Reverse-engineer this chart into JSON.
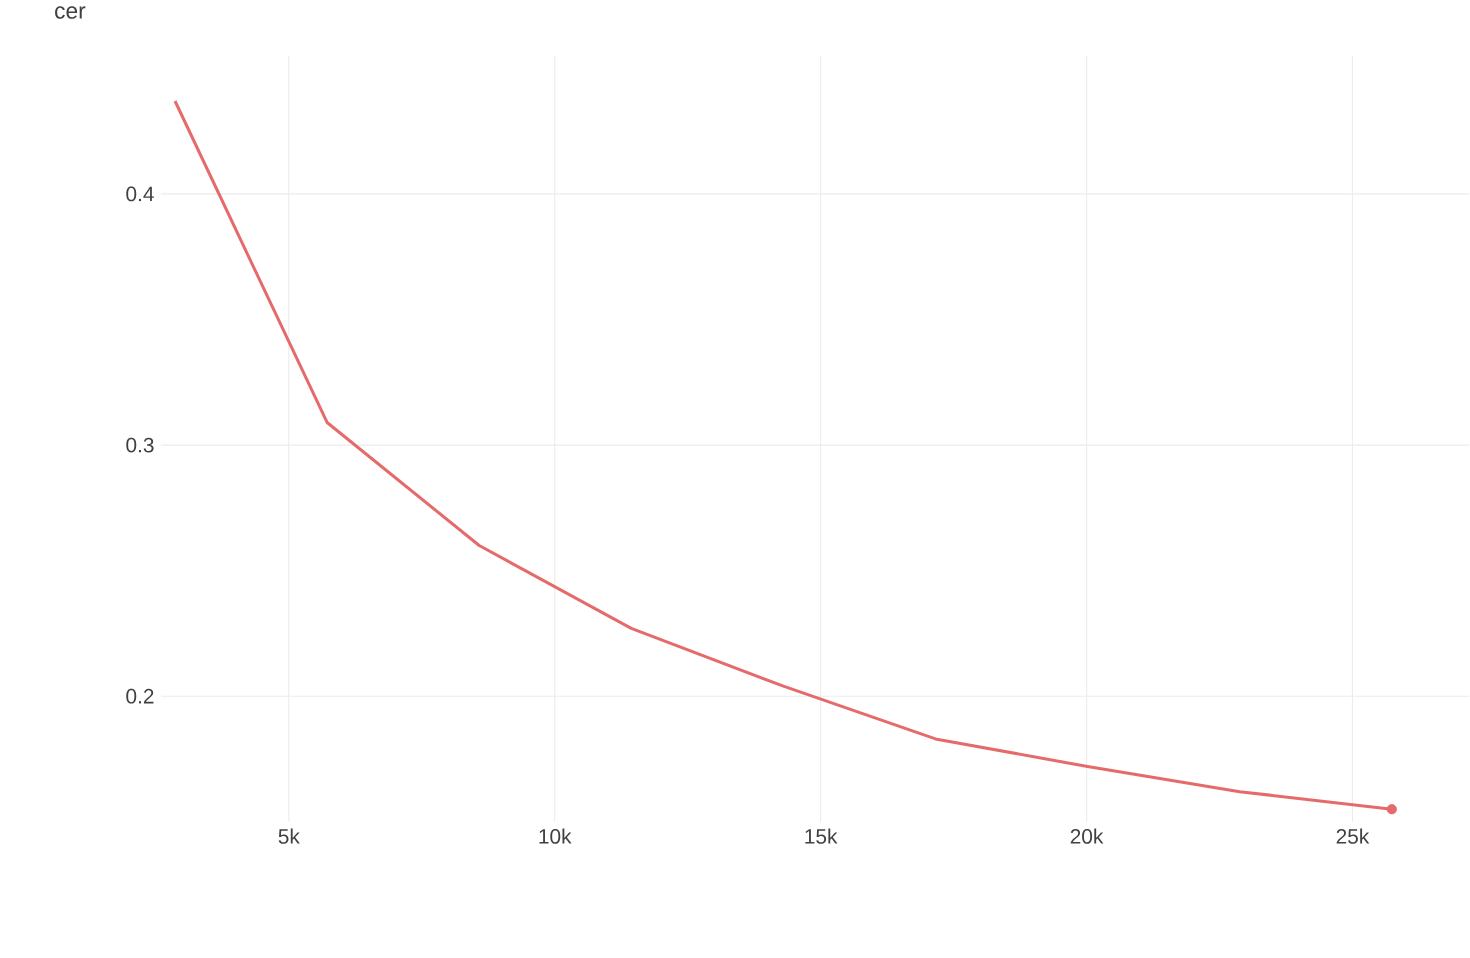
{
  "chart_data": {
    "type": "line",
    "title": "cer",
    "series": [
      {
        "color": "#e56b6b",
        "x": [
          2860,
          5720,
          8580,
          11440,
          14300,
          17160,
          20020,
          22880,
          25740
        ],
        "values": [
          0.437,
          0.309,
          0.26,
          0.227,
          0.204,
          0.183,
          0.172,
          0.162,
          0.155
        ]
      },
      {
        "type": "scatter",
        "color": "#e56b6b",
        "x": [
          25740
        ],
        "values": [
          0.155
        ]
      }
    ],
    "xlim": [
      2600,
      27200
    ],
    "ylim": [
      0.15,
      0.455
    ],
    "xticks": [
      {
        "value": 5000,
        "label": "5k"
      },
      {
        "value": 10000,
        "label": "10k"
      },
      {
        "value": 15000,
        "label": "15k"
      },
      {
        "value": 20000,
        "label": "20k"
      },
      {
        "value": 25000,
        "label": "25k"
      }
    ],
    "yticks": [
      0.2,
      0.3,
      0.4
    ],
    "grid": true
  }
}
